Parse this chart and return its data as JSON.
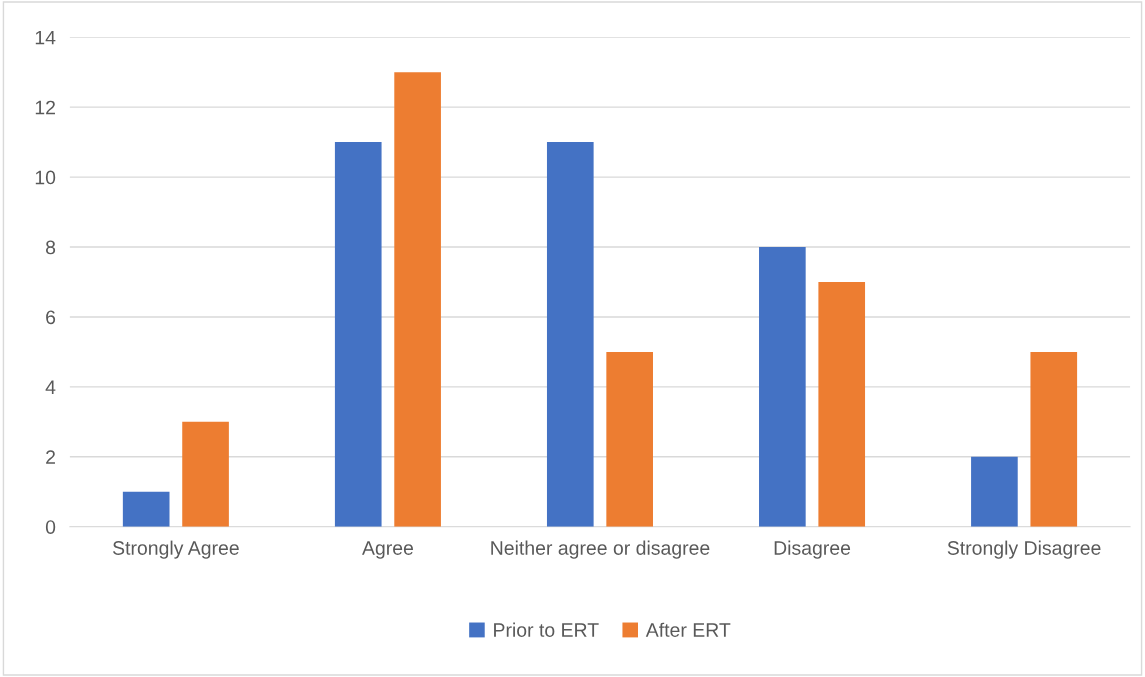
{
  "chart_data": {
    "type": "bar",
    "categories": [
      "Strongly Agree",
      "Agree",
      "Neither agree or disagree",
      "Disagree",
      "Strongly Disagree"
    ],
    "series": [
      {
        "name": "Prior to ERT",
        "color": "#4472c4",
        "values": [
          1,
          11,
          11,
          8,
          2
        ]
      },
      {
        "name": "After ERT",
        "color": "#ed7d31",
        "values": [
          3,
          13,
          5,
          7,
          5
        ]
      }
    ],
    "ylim": [
      0,
      14
    ],
    "yticks": [
      0,
      2,
      4,
      6,
      8,
      10,
      12,
      14
    ],
    "grid": "y",
    "legend": "bottom"
  }
}
